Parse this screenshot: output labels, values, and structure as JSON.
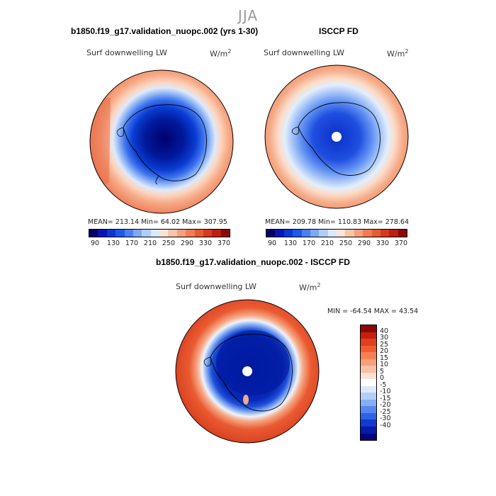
{
  "season": "JJA",
  "panels": [
    {
      "title": "b1850.f19_g17.validation_nuopc.002 (yrs 1-30)",
      "variable": "Surf downwelling LW",
      "units": "W/m",
      "units_sup": "2",
      "stats": "MEAN= 213.14   Min=   64.02   Max= 307.95"
    },
    {
      "title": "ISCCP FD",
      "variable": "Surf downwelling LW",
      "units": "W/m",
      "units_sup": "2",
      "stats": "MEAN= 209.78   Min= 110.83   Max= 278.64"
    },
    {
      "title": "b1850.f19_g17.validation_nuopc.002 - ISCCP FD",
      "variable": "Surf downwelling LW",
      "units": "W/m",
      "units_sup": "2",
      "stats": "MIN = -64.54  MAX =  43.54"
    }
  ],
  "colorbar_main": {
    "colors": [
      "#08006a",
      "#0018b4",
      "#0a37d6",
      "#1f58e6",
      "#4a80f2",
      "#7ea8f6",
      "#b0cdf8",
      "#dae8fa",
      "#fbe4d6",
      "#f9c4a7",
      "#f6a07c",
      "#f17c56",
      "#e75a32",
      "#d6391d",
      "#bc1e10",
      "#8c0806"
    ],
    "ticks": [
      "90",
      "130",
      "170",
      "210",
      "250",
      "290",
      "330",
      "370"
    ]
  },
  "colorbar_diff": {
    "colors": [
      "#8c0806",
      "#c5200f",
      "#e0401d",
      "#f05e30",
      "#f68055",
      "#f8a07c",
      "#f8c1a3",
      "#fbe2d3",
      "#ffffff",
      "#dce8fa",
      "#b3cff8",
      "#86aff6",
      "#5788f0",
      "#2f63e6",
      "#1339cf",
      "#061ca8",
      "#02067a"
    ],
    "labels": [
      "40",
      "30",
      "25",
      "20",
      "15",
      "10",
      "5",
      "0",
      "-5",
      "-10",
      "-15",
      "-20",
      "-25",
      "-30",
      "-40"
    ]
  }
}
